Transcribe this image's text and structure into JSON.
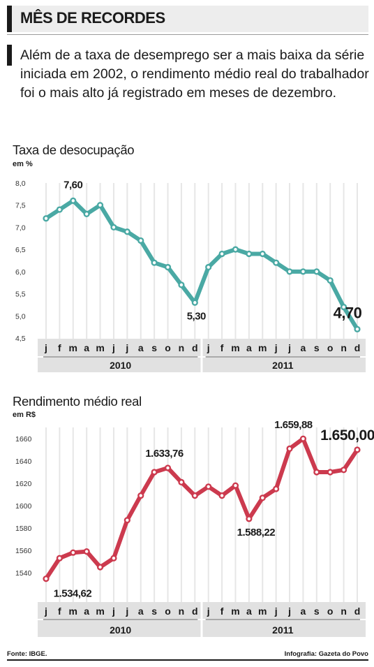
{
  "header": {
    "title": "MÊS DE RECORDES"
  },
  "intro": "Além de a taxa de desemprego ser a mais baixa da série iniciada em 2002, o rendimento médio real do trabalhador foi o mais alto já registrado em meses de dezembro.",
  "footer": {
    "source": "Fonte: IBGE.",
    "credit": "Infografia: Gazeta do Povo"
  },
  "colors": {
    "chart1_line": "#4aa9a4",
    "chart2_line": "#cc3a4e",
    "axis_band": "#e1e1e1",
    "grid": "#e6e6e6"
  },
  "chart_data": [
    {
      "type": "line",
      "title": "Taxa de desocupação",
      "unit": "em %",
      "x": [
        "j",
        "f",
        "m",
        "a",
        "m",
        "j",
        "j",
        "a",
        "s",
        "o",
        "n",
        "d",
        "j",
        "f",
        "m",
        "a",
        "m",
        "j",
        "j",
        "a",
        "s",
        "o",
        "n",
        "d"
      ],
      "years": [
        "2010",
        "2011"
      ],
      "values": [
        7.2,
        7.4,
        7.6,
        7.3,
        7.5,
        7.0,
        6.9,
        6.7,
        6.2,
        6.1,
        5.7,
        5.3,
        6.1,
        6.4,
        6.5,
        6.4,
        6.4,
        6.2,
        6.0,
        6.0,
        6.0,
        5.8,
        5.2,
        4.7
      ],
      "ylim": [
        4.5,
        8.0
      ],
      "yticks": [
        "8,0",
        "7,5",
        "7,0",
        "6,5",
        "6,0",
        "5,5",
        "5,0",
        "4,5"
      ],
      "yticks_values": [
        8.0,
        7.5,
        7.0,
        6.5,
        6.0,
        5.5,
        5.0,
        4.5
      ],
      "annotations": [
        {
          "index": 2,
          "label": "7,60"
        },
        {
          "index": 11,
          "label": "5,30"
        },
        {
          "index": 23,
          "label": "4,70"
        }
      ]
    },
    {
      "type": "line",
      "title": "Rendimento médio real",
      "unit": "em R$",
      "x": [
        "j",
        "f",
        "m",
        "a",
        "m",
        "j",
        "j",
        "a",
        "s",
        "o",
        "n",
        "d",
        "j",
        "f",
        "m",
        "a",
        "m",
        "j",
        "j",
        "a",
        "s",
        "o",
        "n",
        "d"
      ],
      "years": [
        "2010",
        "2011"
      ],
      "values": [
        1534.62,
        1553,
        1558,
        1559,
        1545,
        1553,
        1587,
        1609,
        1630,
        1633.76,
        1621,
        1609,
        1617,
        1609,
        1618,
        1588.22,
        1607,
        1615,
        1651,
        1659.88,
        1630,
        1630,
        1632,
        1650.0
      ],
      "ylim": [
        1530,
        1670
      ],
      "yticks": [
        "1660",
        "1640",
        "1620",
        "1600",
        "1580",
        "1560",
        "1540"
      ],
      "yticks_values": [
        1660,
        1640,
        1620,
        1600,
        1580,
        1560,
        1540
      ],
      "annotations": [
        {
          "index": 0,
          "label": "1.534,62"
        },
        {
          "index": 9,
          "label": "1.633,76"
        },
        {
          "index": 15,
          "label": "1.588,22"
        },
        {
          "index": 19,
          "label": "1.659,88"
        },
        {
          "index": 23,
          "label": "1.650,00"
        }
      ]
    }
  ]
}
